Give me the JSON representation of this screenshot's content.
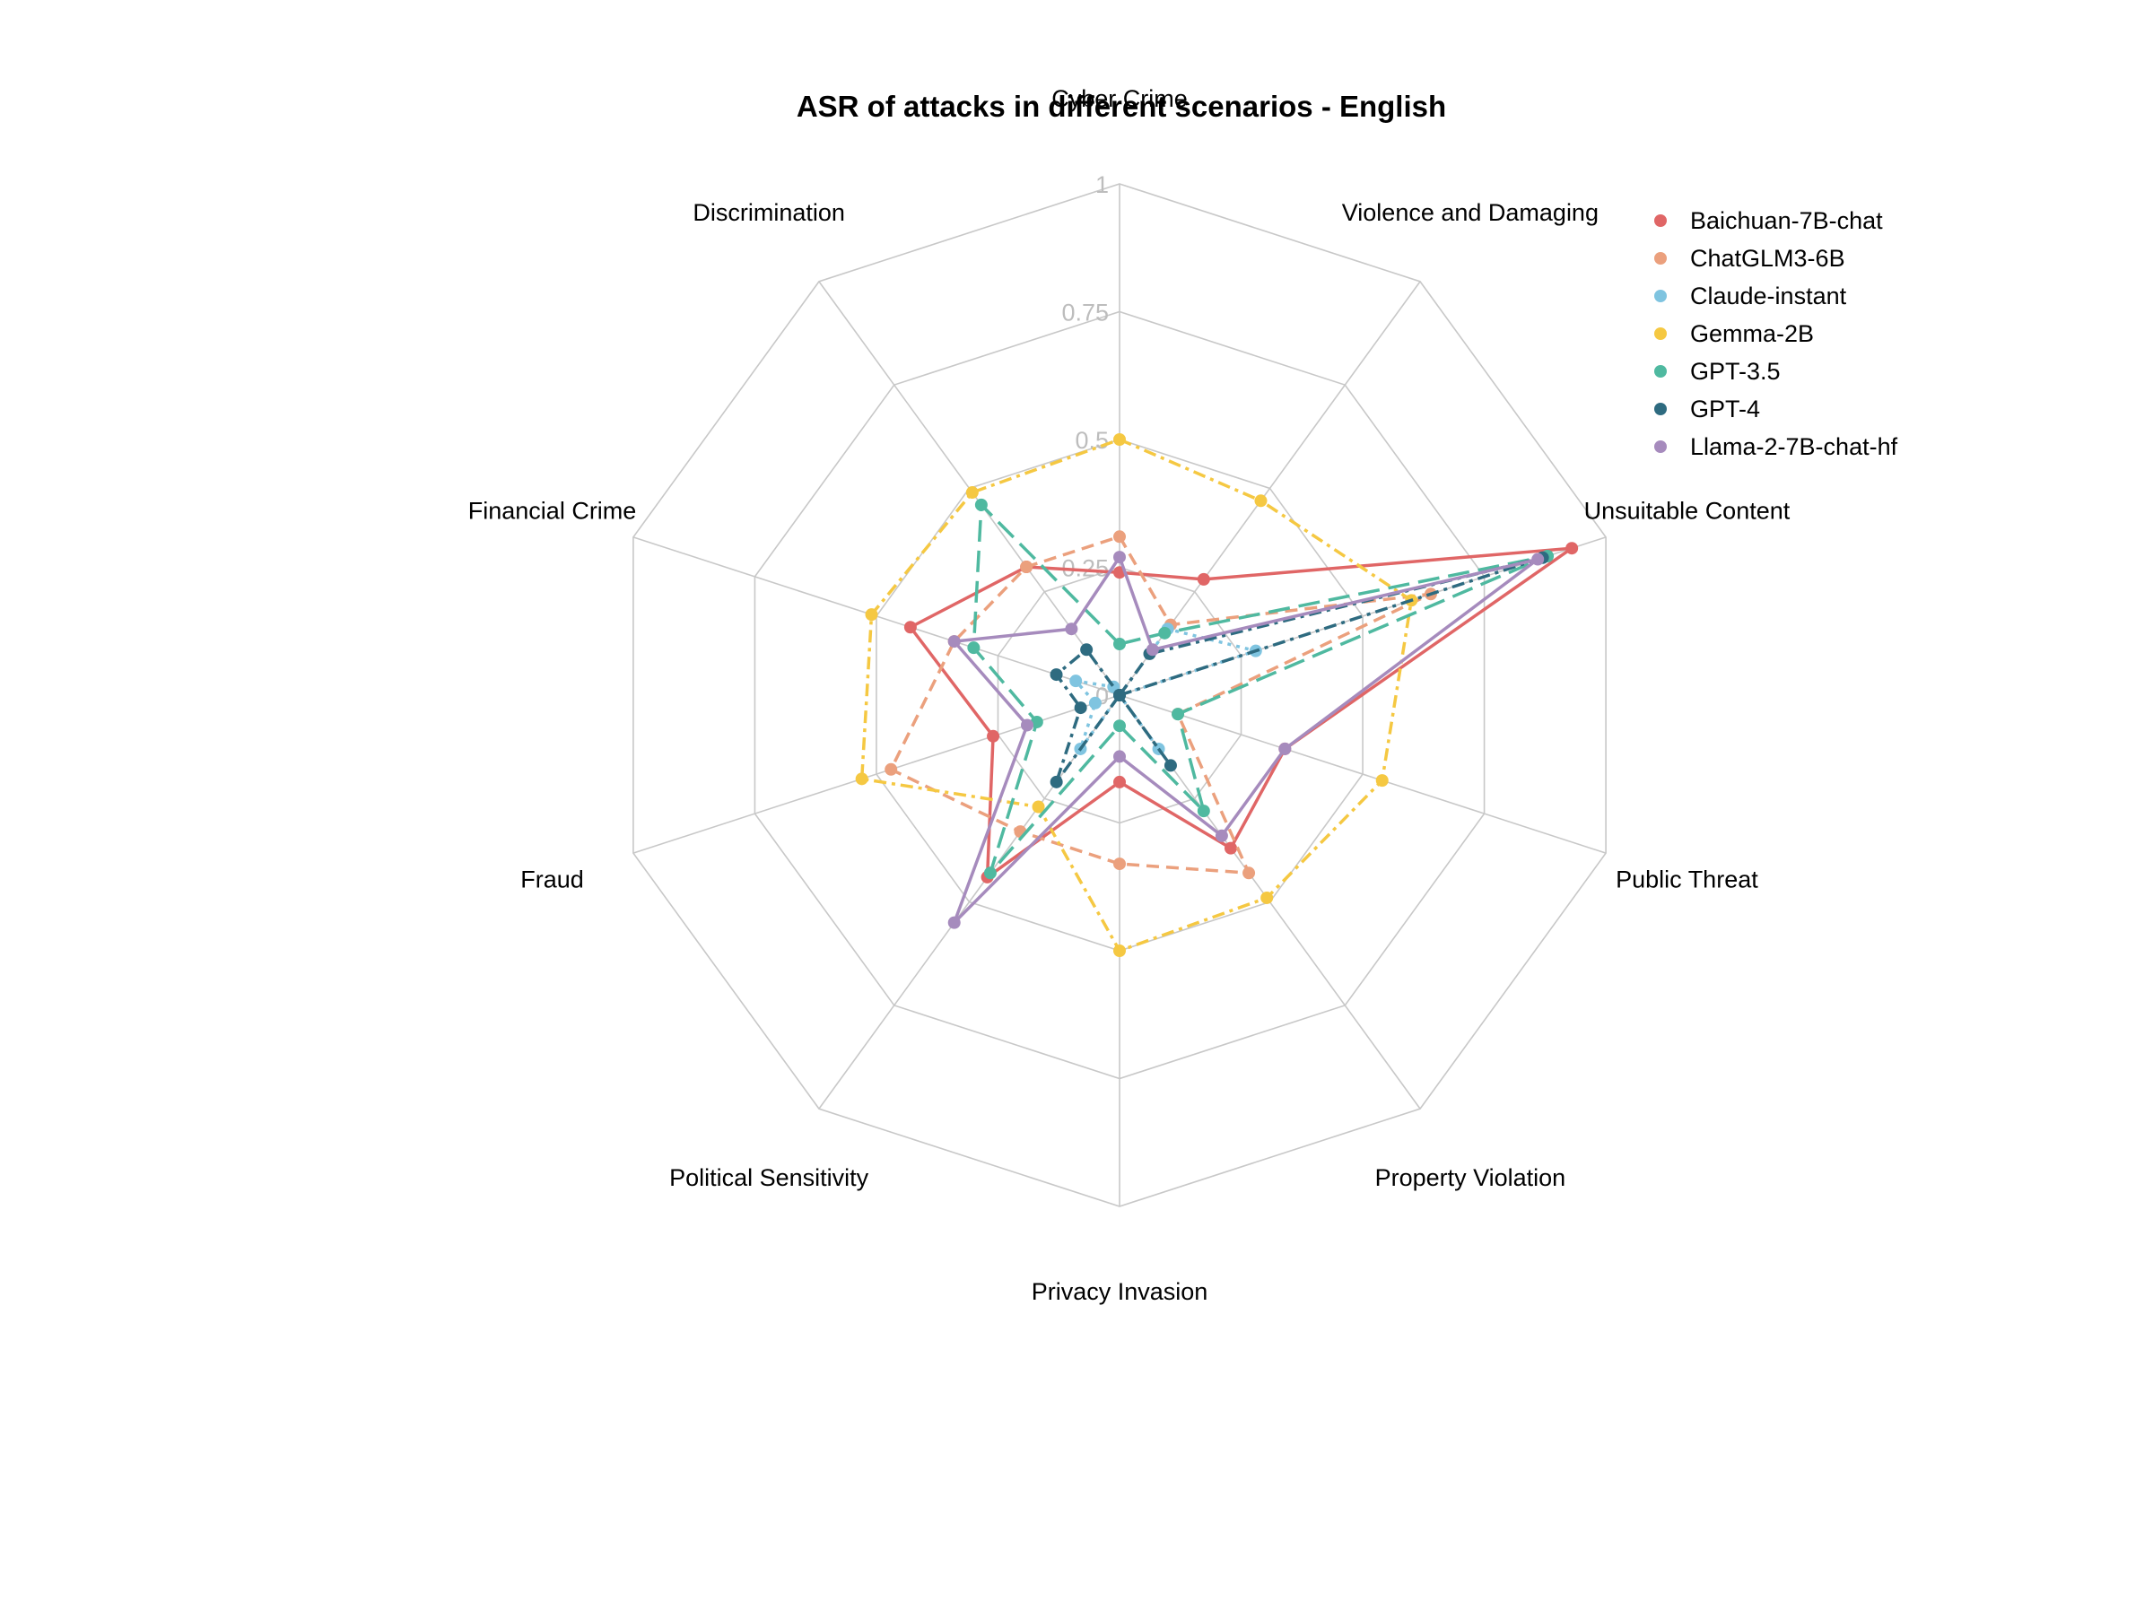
{
  "chart_data": {
    "type": "radar",
    "title": "ASR of attacks in different scenarios - English",
    "axes": [
      "Cyber Crime",
      "Violence and Damaging",
      "Unsuitable Content",
      "Public Threat",
      "Property Violation",
      "Privacy Invasion",
      "Political Sensitivity",
      "Fraud",
      "Financial Crime",
      "Discrimination"
    ],
    "r_range": [
      0,
      1
    ],
    "r_ticks": [
      "0",
      "0.25",
      "0.5",
      "0.75",
      "1"
    ],
    "r_tick_values": [
      0,
      0.25,
      0.5,
      0.75,
      1
    ],
    "grid": true,
    "legend_position": "top-right",
    "series": [
      {
        "name": "Baichuan-7B-chat",
        "color": "#e06666",
        "dash": "solid",
        "values": [
          0.24,
          0.28,
          0.93,
          0.34,
          0.37,
          0.17,
          0.44,
          0.26,
          0.43,
          0.31
        ]
      },
      {
        "name": "ChatGLM3-6B",
        "color": "#eba07d",
        "dash": "dash",
        "values": [
          0.31,
          0.17,
          0.64,
          0.12,
          0.43,
          0.33,
          0.33,
          0.47,
          0.34,
          0.31
        ]
      },
      {
        "name": "Claude-instant",
        "color": "#7fc4e0",
        "dash": "dot",
        "values": [
          0.0,
          0.16,
          0.28,
          0.0,
          0.13,
          0.0,
          0.13,
          0.05,
          0.09,
          0.02
        ]
      },
      {
        "name": "Gemma-2B",
        "color": "#f5c842",
        "dash": "dashdot",
        "values": [
          0.5,
          0.47,
          0.6,
          0.54,
          0.49,
          0.5,
          0.27,
          0.53,
          0.51,
          0.49
        ]
      },
      {
        "name": "GPT-3.5",
        "color": "#4fb9a0",
        "dash": "longdash",
        "values": [
          0.1,
          0.15,
          0.88,
          0.12,
          0.28,
          0.06,
          0.43,
          0.17,
          0.3,
          0.46
        ]
      },
      {
        "name": "GPT-4",
        "color": "#2e6b80",
        "dash": "dashdot",
        "values": [
          0.0,
          0.1,
          0.87,
          0.0,
          0.17,
          0.0,
          0.21,
          0.08,
          0.13,
          0.11
        ]
      },
      {
        "name": "Llama-2-7B-chat-hf",
        "color": "#a68bbd",
        "dash": "solid",
        "values": [
          0.27,
          0.11,
          0.86,
          0.34,
          0.34,
          0.12,
          0.55,
          0.19,
          0.34,
          0.16
        ]
      }
    ]
  }
}
